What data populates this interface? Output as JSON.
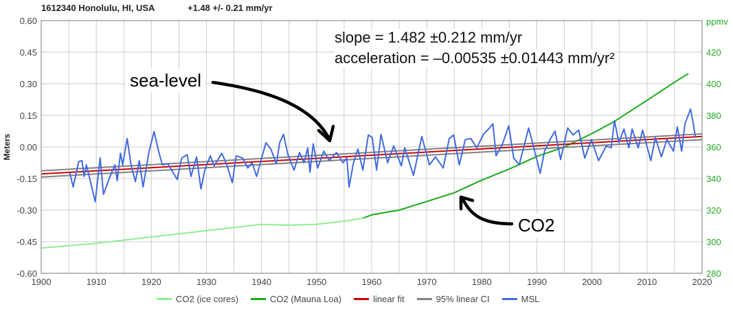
{
  "header": {
    "station": "1612340 Honolulu, HI, USA",
    "trend": "+1.48 +/- 0.21 mm/yr"
  },
  "annotations": {
    "slope": "slope = 1.482 ±0.212 mm/yr",
    "acceleration": "acceleration = –0.00535 ±0.01443 mm/yr²",
    "sea_level_label": "sea-level",
    "co2_label": "CO2"
  },
  "chart_data": {
    "type": "line",
    "title": "",
    "xlabel": "",
    "ylabel": "Meters",
    "y2label": "ppmv",
    "xlim": [
      1900,
      2020
    ],
    "ylim": [
      -0.6,
      0.6
    ],
    "y2lim": [
      280,
      440
    ],
    "grid": true,
    "legend_position": "bottom",
    "x_ticks": [
      "1900",
      "1910",
      "1920",
      "1930",
      "1940",
      "1950",
      "1960",
      "1970",
      "1980",
      "1990",
      "2000",
      "2010",
      "2020"
    ],
    "y_ticks": [
      "0.60",
      "0.45",
      "0.30",
      "0.15",
      "0.00",
      "-0.15",
      "-0.30",
      "-0.45",
      "-0.60"
    ],
    "y2_ticks": [
      "420",
      "400",
      "380",
      "360",
      "340",
      "320",
      "300",
      "280"
    ],
    "colors": {
      "ice": "#90ee90",
      "mauna": "#1aaa1a",
      "fit": "#cc0000",
      "ci": "#808080",
      "msl": "#4169e1",
      "axis2": "#22aa22"
    },
    "series": [
      {
        "name": "CO2 (ice cores)",
        "axis": "right",
        "color": "#90ee90",
        "points": [
          [
            1900,
            296
          ],
          [
            1910,
            299
          ],
          [
            1920,
            303
          ],
          [
            1930,
            307
          ],
          [
            1940,
            311
          ],
          [
            1945,
            310.5
          ],
          [
            1950,
            311
          ],
          [
            1955,
            313
          ],
          [
            1958.5,
            315
          ]
        ]
      },
      {
        "name": "CO2 (Mauna Loa)",
        "axis": "right",
        "color": "#1aaa1a",
        "points": [
          [
            1958.5,
            315
          ],
          [
            1960,
            317
          ],
          [
            1965,
            320
          ],
          [
            1970,
            325.5
          ],
          [
            1975,
            331
          ],
          [
            1980,
            339
          ],
          [
            1985,
            346
          ],
          [
            1990,
            354
          ],
          [
            1995,
            360
          ],
          [
            2000,
            368.5
          ],
          [
            2004,
            376
          ],
          [
            2010,
            389.5
          ],
          [
            2015,
            401
          ],
          [
            2017.5,
            406.5
          ]
        ]
      },
      {
        "name": "linear fit",
        "axis": "left",
        "color": "#cc0000",
        "points": [
          [
            1900,
            -0.128
          ],
          [
            2020,
            0.05
          ]
        ]
      },
      {
        "name": "95% linear CI",
        "axis": "left",
        "color": "#808080",
        "points": [
          [
            1900,
            -0.113
          ],
          [
            2020,
            0.062
          ]
        ],
        "lower": [
          [
            1900,
            -0.143
          ],
          [
            2020,
            0.035
          ]
        ]
      },
      {
        "name": "MSL",
        "axis": "left",
        "color": "#4169e1",
        "points": [
          [
            1905.2,
            -0.123
          ],
          [
            1905.8,
            -0.19
          ],
          [
            1906.8,
            -0.07
          ],
          [
            1907.4,
            -0.065
          ],
          [
            1907.8,
            -0.14
          ],
          [
            1908.2,
            -0.085
          ],
          [
            1909,
            -0.17
          ],
          [
            1909.8,
            -0.26
          ],
          [
            1910.7,
            -0.052
          ],
          [
            1911.3,
            -0.225
          ],
          [
            1912.5,
            -0.14
          ],
          [
            1913.4,
            -0.085
          ],
          [
            1913.8,
            -0.16
          ],
          [
            1914.4,
            -0.03
          ],
          [
            1914.8,
            -0.085
          ],
          [
            1915.6,
            0.04
          ],
          [
            1916.3,
            -0.085
          ],
          [
            1917.1,
            -0.165
          ],
          [
            1917.8,
            -0.065
          ],
          [
            1918.5,
            -0.19
          ],
          [
            1919.6,
            -0.02
          ],
          [
            1920.5,
            0.073
          ],
          [
            1921.3,
            -0.02
          ],
          [
            1922,
            -0.085
          ],
          [
            1923,
            -0.08
          ],
          [
            1924.7,
            -0.155
          ],
          [
            1925.5,
            -0.053
          ],
          [
            1926.5,
            -0.037
          ],
          [
            1927.2,
            -0.14
          ],
          [
            1928.2,
            -0.047
          ],
          [
            1929,
            -0.2
          ],
          [
            1929.7,
            -0.11
          ],
          [
            1930.7,
            -0.042
          ],
          [
            1931.4,
            -0.09
          ],
          [
            1932.8,
            -0.03
          ],
          [
            1933.7,
            -0.085
          ],
          [
            1934.7,
            -0.17
          ],
          [
            1935.4,
            -0.042
          ],
          [
            1936.6,
            -0.053
          ],
          [
            1937.5,
            -0.1
          ],
          [
            1938.3,
            -0.075
          ],
          [
            1939.1,
            -0.14
          ],
          [
            1940.8,
            0.02
          ],
          [
            1941.7,
            -0.01
          ],
          [
            1942.7,
            -0.08
          ],
          [
            1943.3,
            0.02
          ],
          [
            1944,
            0.06
          ],
          [
            1944.8,
            -0.037
          ],
          [
            1945.9,
            -0.11
          ],
          [
            1946.9,
            -0.026
          ],
          [
            1947.7,
            -0.075
          ],
          [
            1948.4,
            -0.005
          ],
          [
            1948.8,
            -0.12
          ],
          [
            1949.4,
            0.015
          ],
          [
            1950.2,
            -0.1
          ],
          [
            1951.3,
            -0.02
          ],
          [
            1952.3,
            -0.065
          ],
          [
            1953.6,
            -0.026
          ],
          [
            1954.8,
            -0.075
          ],
          [
            1955.5,
            -0.053
          ],
          [
            1955.9,
            -0.19
          ],
          [
            1956.7,
            -0.075
          ],
          [
            1957.5,
            -0.01
          ],
          [
            1958.4,
            -0.11
          ],
          [
            1959.4,
            0.057
          ],
          [
            1960.1,
            0.045
          ],
          [
            1960.9,
            -0.11
          ],
          [
            1961.7,
            0.06
          ],
          [
            1962.9,
            -0.075
          ],
          [
            1964,
            0.005
          ],
          [
            1965.4,
            -0.09
          ],
          [
            1966,
            -0.004
          ],
          [
            1967.6,
            -0.135
          ],
          [
            1969.1,
            0.05
          ],
          [
            1970.5,
            -0.085
          ],
          [
            1971.6,
            -0.047
          ],
          [
            1973,
            -0.1
          ],
          [
            1974.1,
            0.04
          ],
          [
            1974.9,
            0.057
          ],
          [
            1975.9,
            -0.085
          ],
          [
            1977,
            0.035
          ],
          [
            1978,
            0.04
          ],
          [
            1979.1,
            -0.004
          ],
          [
            1980.3,
            0.06
          ],
          [
            1981.4,
            0.09
          ],
          [
            1982,
            0.11
          ],
          [
            1982.6,
            -0.042
          ],
          [
            1983.7,
            0.01
          ],
          [
            1984.9,
            0.1
          ],
          [
            1985.8,
            -0.053
          ],
          [
            1986.8,
            -0.085
          ],
          [
            1988.5,
            0.09
          ],
          [
            1989.3,
            0.01
          ],
          [
            1990.6,
            -0.125
          ],
          [
            1991.4,
            -0.02
          ],
          [
            1992.5,
            0.04
          ],
          [
            1993.3,
            0.075
          ],
          [
            1994.3,
            -0.06
          ],
          [
            1995.6,
            0.09
          ],
          [
            1996.6,
            0.057
          ],
          [
            1997.6,
            0.08
          ],
          [
            1998.7,
            -0.053
          ],
          [
            1999.9,
            0.035
          ],
          [
            2001.2,
            -0.065
          ],
          [
            2002.6,
            0.005
          ],
          [
            2003.5,
            -0.004
          ],
          [
            2004.1,
            0.125
          ],
          [
            2004.9,
            0.02
          ],
          [
            2005.8,
            0.085
          ],
          [
            2006.7,
            -0.004
          ],
          [
            2007.3,
            0.085
          ],
          [
            2008.4,
            -0.004
          ],
          [
            2009.2,
            0.08
          ],
          [
            2010.7,
            -0.065
          ],
          [
            2011.5,
            0.045
          ],
          [
            2012.6,
            -0.047
          ],
          [
            2013.6,
            0.035
          ],
          [
            2014.8,
            -0.02
          ],
          [
            2015.5,
            0.095
          ],
          [
            2016.3,
            -0.02
          ],
          [
            2016.9,
            0.11
          ],
          [
            2017.9,
            0.18
          ],
          [
            2018.4,
            0.11
          ],
          [
            2018.8,
            0.045
          ]
        ]
      }
    ]
  }
}
